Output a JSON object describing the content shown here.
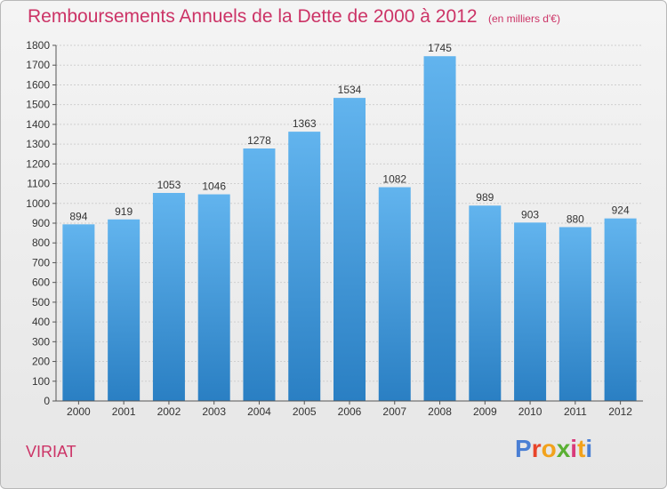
{
  "header": {
    "title": "Remboursements Annuels de la Dette de 2000 à 2012",
    "subtitle": "(en milliers d'€)"
  },
  "footer": {
    "city": "VIRIAT",
    "logo_text": "Proxiti"
  },
  "colors": {
    "title": "#cc3366",
    "bar_light": "#62b4ee",
    "bar_dark": "#2a7fc3",
    "logo_letters": [
      "#4a7fd4",
      "#e8442a",
      "#f2a21c",
      "#5ab033",
      "#d93a7a",
      "#f2a21c",
      "#4a7fd4"
    ]
  },
  "chart_data": {
    "type": "bar",
    "categories": [
      "2000",
      "2001",
      "2002",
      "2003",
      "2004",
      "2005",
      "2006",
      "2007",
      "2008",
      "2009",
      "2010",
      "2011",
      "2012"
    ],
    "values": [
      894,
      919,
      1053,
      1046,
      1278,
      1363,
      1534,
      1082,
      1745,
      989,
      903,
      880,
      924
    ],
    "ylim": [
      0,
      1800
    ],
    "yticks": [
      0,
      100,
      200,
      300,
      400,
      500,
      600,
      700,
      800,
      900,
      1000,
      1100,
      1200,
      1300,
      1400,
      1500,
      1600,
      1700,
      1800
    ],
    "grid": true,
    "legend": "none"
  }
}
